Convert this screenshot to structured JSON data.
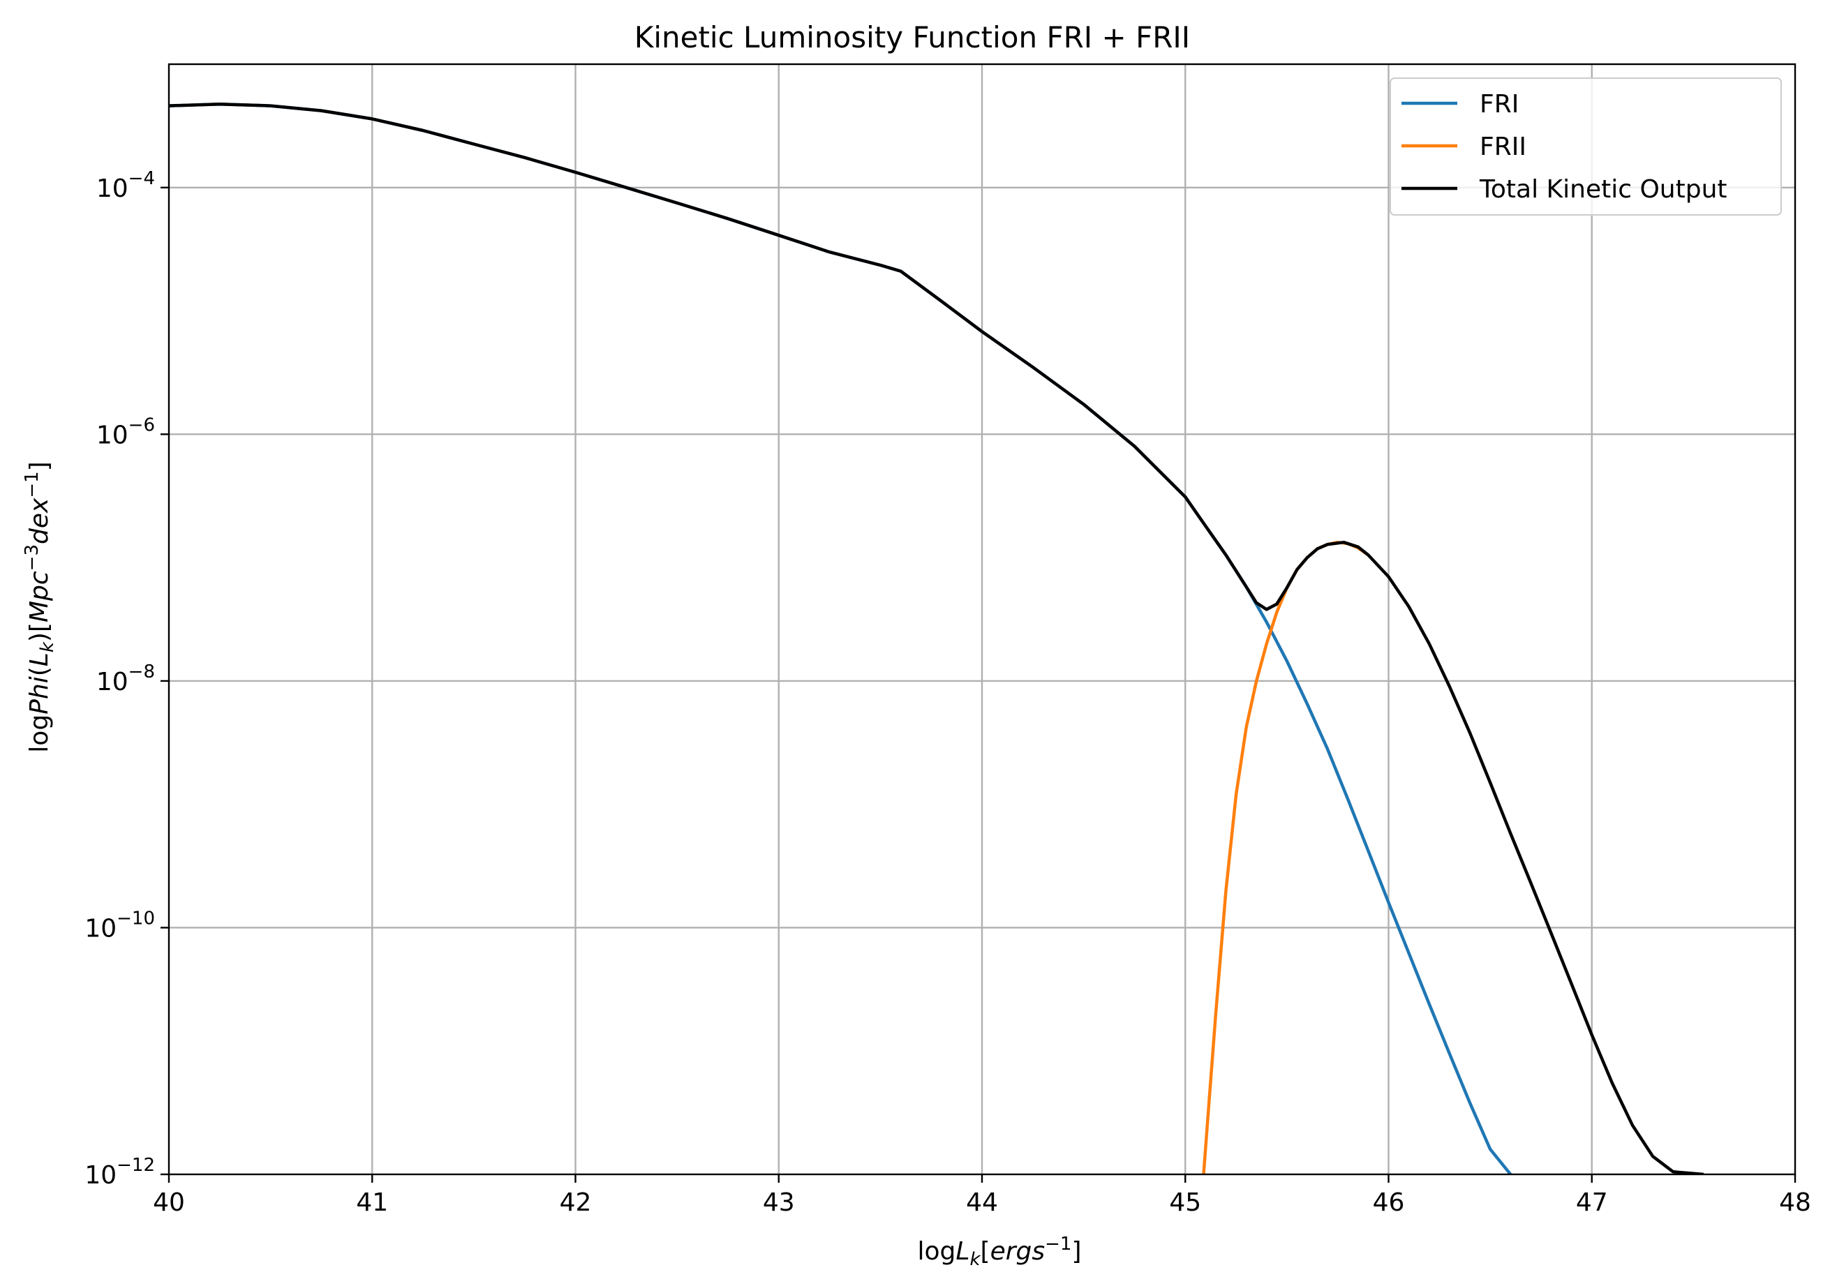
{
  "chart_data": {
    "type": "line",
    "title": "Kinetic Luminosity Function FRI + FRII",
    "xlabel": "logL_k[ergs^-1]",
    "ylabel": "logPhi(L_k)[Mpc^-3 dex^-1]",
    "xlim": [
      40,
      48
    ],
    "ylim": [
      1e-12,
      0.001
    ],
    "yscale": "log",
    "grid": true,
    "legend_position": "top-right",
    "x_ticks": [
      "40",
      "41",
      "42",
      "43",
      "44",
      "45",
      "46",
      "47",
      "48"
    ],
    "y_ticks": [
      {
        "base": "10",
        "exp": "−4",
        "value": 0.0001
      },
      {
        "base": "10",
        "exp": "−6",
        "value": 1e-06
      },
      {
        "base": "10",
        "exp": "−8",
        "value": 1e-08
      },
      {
        "base": "10",
        "exp": "−10",
        "value": 1e-10
      },
      {
        "base": "10",
        "exp": "−12",
        "value": 1e-12
      }
    ],
    "series": [
      {
        "name": "FRI",
        "color": "#1f77b4",
        "points": [
          [
            40.0,
            0.00046
          ],
          [
            40.25,
            0.000475
          ],
          [
            40.5,
            0.00046
          ],
          [
            40.75,
            0.00042
          ],
          [
            41.0,
            0.00036
          ],
          [
            41.25,
            0.00029
          ],
          [
            41.5,
            0.000225
          ],
          [
            41.75,
            0.000175
          ],
          [
            42.0,
            0.000133
          ],
          [
            42.25,
            0.0001
          ],
          [
            42.5,
            7.5e-05
          ],
          [
            42.75,
            5.6e-05
          ],
          [
            43.0,
            4.1e-05
          ],
          [
            43.25,
            3e-05
          ],
          [
            43.5,
            2.35e-05
          ],
          [
            43.6,
            2.1e-05
          ],
          [
            43.8,
            1.2e-05
          ],
          [
            44.0,
            6.8e-06
          ],
          [
            44.25,
            3.5e-06
          ],
          [
            44.5,
            1.75e-06
          ],
          [
            44.75,
            8e-07
          ],
          [
            45.0,
            3.1e-07
          ],
          [
            45.1,
            1.8e-07
          ],
          [
            45.2,
            1.05e-07
          ],
          [
            45.3,
            5.8e-08
          ],
          [
            45.4,
            3e-08
          ],
          [
            45.5,
            1.45e-08
          ],
          [
            45.6,
            6.5e-09
          ],
          [
            45.7,
            2.8e-09
          ],
          [
            45.8,
            1.1e-09
          ],
          [
            45.9,
            4.2e-10
          ],
          [
            46.0,
            1.6e-10
          ],
          [
            46.1,
            6.2e-11
          ],
          [
            46.2,
            2.4e-11
          ],
          [
            46.3,
            9.5e-12
          ],
          [
            46.4,
            3.8e-12
          ],
          [
            46.5,
            1.6e-12
          ],
          [
            46.6,
            1e-12
          ]
        ]
      },
      {
        "name": "FRII",
        "color": "#ff7f0e",
        "points": [
          [
            45.09,
            1e-12
          ],
          [
            45.12,
            4.5e-12
          ],
          [
            45.15,
            2e-11
          ],
          [
            45.2,
            2e-10
          ],
          [
            45.25,
            1.2e-09
          ],
          [
            45.3,
            4.2e-09
          ],
          [
            45.35,
            1e-08
          ],
          [
            45.4,
            2e-08
          ],
          [
            45.45,
            3.6e-08
          ],
          [
            45.5,
            5.7e-08
          ],
          [
            45.55,
            8e-08
          ],
          [
            45.6,
            1e-07
          ],
          [
            45.65,
            1.18e-07
          ],
          [
            45.7,
            1.28e-07
          ],
          [
            45.75,
            1.33e-07
          ],
          [
            45.8,
            1.3e-07
          ],
          [
            45.85,
            1.2e-07
          ],
          [
            45.9,
            1.05e-07
          ]
        ]
      },
      {
        "name": "Total Kinetic Output",
        "color": "#000000",
        "points": [
          [
            40.0,
            0.00046
          ],
          [
            40.25,
            0.000475
          ],
          [
            40.5,
            0.00046
          ],
          [
            40.75,
            0.00042
          ],
          [
            41.0,
            0.00036
          ],
          [
            41.25,
            0.00029
          ],
          [
            41.5,
            0.000225
          ],
          [
            41.75,
            0.000175
          ],
          [
            42.0,
            0.000133
          ],
          [
            42.25,
            0.0001
          ],
          [
            42.5,
            7.5e-05
          ],
          [
            42.75,
            5.6e-05
          ],
          [
            43.0,
            4.1e-05
          ],
          [
            43.25,
            3e-05
          ],
          [
            43.5,
            2.35e-05
          ],
          [
            43.6,
            2.1e-05
          ],
          [
            43.8,
            1.2e-05
          ],
          [
            44.0,
            6.8e-06
          ],
          [
            44.25,
            3.5e-06
          ],
          [
            44.5,
            1.75e-06
          ],
          [
            44.75,
            8e-07
          ],
          [
            45.0,
            3.1e-07
          ],
          [
            45.1,
            1.8e-07
          ],
          [
            45.2,
            1.05e-07
          ],
          [
            45.3,
            5.8e-08
          ],
          [
            45.35,
            4.3e-08
          ],
          [
            45.4,
            3.8e-08
          ],
          [
            45.45,
            4.2e-08
          ],
          [
            45.5,
            5.7e-08
          ],
          [
            45.55,
            8e-08
          ],
          [
            45.6,
            1e-07
          ],
          [
            45.65,
            1.18e-07
          ],
          [
            45.7,
            1.28e-07
          ],
          [
            45.78,
            1.33e-07
          ],
          [
            45.85,
            1.22e-07
          ],
          [
            45.9,
            1.05e-07
          ],
          [
            46.0,
            7e-08
          ],
          [
            46.1,
            4e-08
          ],
          [
            46.2,
            2e-08
          ],
          [
            46.3,
            9e-09
          ],
          [
            46.4,
            3.8e-09
          ],
          [
            46.5,
            1.5e-09
          ],
          [
            46.6,
            5.8e-10
          ],
          [
            46.7,
            2.3e-10
          ],
          [
            46.8,
            9e-11
          ],
          [
            46.9,
            3.5e-11
          ],
          [
            47.0,
            1.35e-11
          ],
          [
            47.1,
            5.5e-12
          ],
          [
            47.2,
            2.5e-12
          ],
          [
            47.3,
            1.4e-12
          ],
          [
            47.4,
            1.05e-12
          ],
          [
            47.55,
            1e-12
          ]
        ]
      }
    ]
  }
}
